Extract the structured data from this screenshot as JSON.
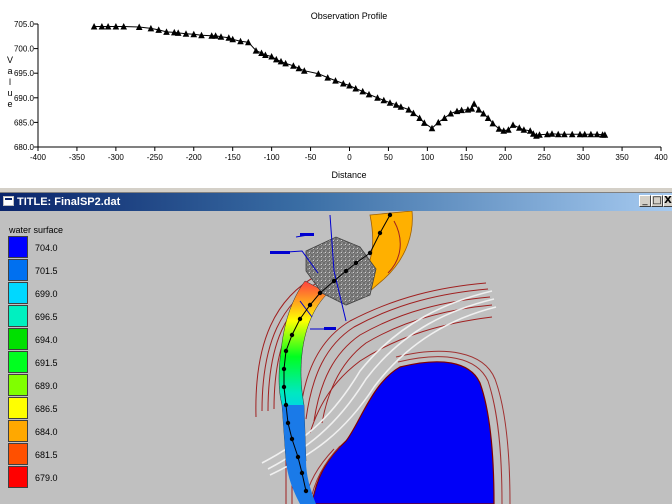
{
  "chart_data": {
    "type": "line",
    "title": "Observation Profile",
    "xlabel": "Distance",
    "ylabel": "Value",
    "xlim": [
      -400,
      400
    ],
    "ylim": [
      680,
      705
    ],
    "xticks": [
      -400,
      -350,
      -300,
      -250,
      -200,
      -150,
      -100,
      -50,
      0,
      50,
      100,
      150,
      200,
      250,
      300,
      350,
      400
    ],
    "yticks": [
      "705.0",
      "700.0",
      "695.0",
      "690.0",
      "685.0",
      "680.0"
    ],
    "x": [
      -328,
      -318,
      -310,
      -300,
      -290,
      -270,
      -255,
      -245,
      -235,
      -225,
      -220,
      -210,
      -200,
      -190,
      -177,
      -172,
      -165,
      -155,
      -150,
      -140,
      -130,
      -120,
      -113,
      -108,
      -100,
      -94,
      -88,
      -82,
      -72,
      -65,
      -58,
      -40,
      -28,
      -18,
      -8,
      0,
      8,
      17,
      25,
      36,
      44,
      52,
      60,
      66,
      76,
      82,
      90,
      96,
      106,
      114,
      122,
      130,
      138,
      144,
      152,
      157,
      160,
      166,
      172,
      178,
      184,
      192,
      198,
      204,
      210,
      218,
      224,
      232,
      236,
      240,
      244,
      254,
      260,
      268,
      276,
      286,
      296,
      302,
      310,
      318,
      325,
      328
    ],
    "y": [
      704.5,
      704.5,
      704.5,
      704.5,
      704.5,
      704.4,
      704.1,
      703.8,
      703.4,
      703.3,
      703.2,
      703.0,
      702.9,
      702.7,
      702.6,
      702.6,
      702.4,
      702.2,
      701.9,
      701.5,
      701.3,
      699.6,
      699.1,
      698.7,
      698.4,
      697.8,
      697.4,
      697.0,
      696.5,
      696.0,
      695.5,
      694.9,
      694.1,
      693.5,
      692.9,
      692.5,
      691.9,
      691.3,
      690.7,
      690.0,
      689.5,
      689.0,
      688.6,
      688.2,
      687.6,
      686.9,
      685.9,
      684.9,
      683.8,
      685.0,
      685.9,
      686.8,
      687.3,
      687.5,
      687.6,
      687.8,
      688.8,
      687.6,
      686.8,
      685.9,
      684.8,
      683.7,
      683.3,
      683.5,
      684.5,
      683.9,
      683.5,
      683.3,
      682.7,
      682.3,
      682.5,
      682.6,
      682.7,
      682.6,
      682.6,
      682.6,
      682.6,
      682.6,
      682.6,
      682.6,
      682.5,
      682.5
    ]
  },
  "window": {
    "title": "TITLE: FinalSP2.dat",
    "min_symbol": "_",
    "max_symbol": "□",
    "close_symbol": "X"
  },
  "legend": {
    "title": "water surface",
    "items": [
      {
        "value": "704.0",
        "color": "#0000ff"
      },
      {
        "value": "701.5",
        "color": "#0070f0"
      },
      {
        "value": "699.0",
        "color": "#00d8ff"
      },
      {
        "value": "696.5",
        "color": "#00f0c0"
      },
      {
        "value": "694.0",
        "color": "#00e000"
      },
      {
        "value": "691.5",
        "color": "#00ff20"
      },
      {
        "value": "689.0",
        "color": "#80ff00"
      },
      {
        "value": "686.5",
        "color": "#ffff00"
      },
      {
        "value": "684.0",
        "color": "#ffa800"
      },
      {
        "value": "681.5",
        "color": "#ff5000"
      },
      {
        "value": "679.0",
        "color": "#ff0000"
      }
    ]
  }
}
